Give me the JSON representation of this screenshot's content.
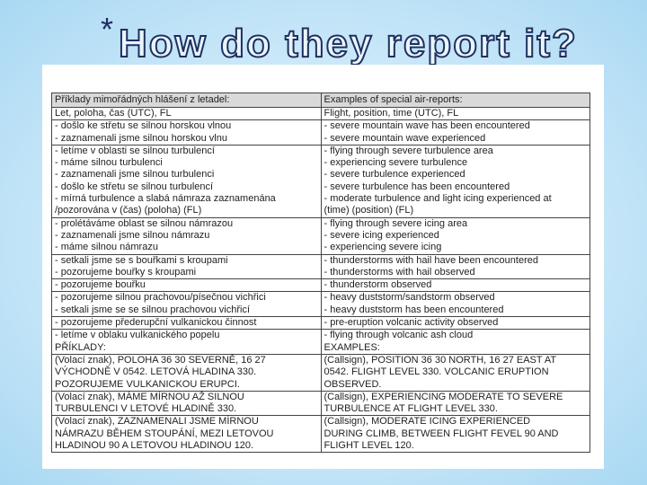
{
  "slide": {
    "bullet": "*",
    "title": "How do they report it?"
  },
  "table": {
    "header": [
      "Příklady mimořádných hlášení z letadel:",
      "Examples of special air-reports:"
    ],
    "rows": [
      [
        [
          "Let, poloha, čas (UTC), FL"
        ],
        [
          "Flight, position, time (UTC), FL"
        ]
      ],
      [
        [
          "- došlo ke střetu se silnou horskou vlnou",
          "- zaznamenali jsme silnou horskou vlnu"
        ],
        [
          "- severe mountain wave has been encountered",
          "- severe mountain wave experienced"
        ]
      ],
      [
        [
          "- letíme v oblasti se silnou turbulencí",
          "- máme silnou turbulenci",
          "- zaznamenali jsme silnou turbulenci",
          "- došlo ke střetu se silnou turbulencí",
          "- mírná turbulence a slabá námraza zaznamenána",
          "/pozorována v (čas) (poloha) (FL)"
        ],
        [
          "- flying through severe turbulence area",
          "- experiencing severe turbulence",
          "- severe turbulence experienced",
          "- severe turbulence has been encountered",
          "- moderate turbulence and light icing experienced at",
          "(time) (position) (FL)"
        ]
      ],
      [
        [
          "- prolétáváme oblast se silnou námrazou",
          "- zaznamenali jsme silnou námrazu",
          "- máme silnou námrazu"
        ],
        [
          "- flying through severe icing area",
          "- severe icing experienced",
          "- experiencing severe icing"
        ]
      ],
      [
        [
          "- setkali jsme se s bouřkami s kroupami",
          "- pozorujeme bouřky s kroupami"
        ],
        [
          "- thunderstorms with hail have been encountered",
          "- thunderstorms with hail observed"
        ]
      ],
      [
        [
          "- pozorujeme bouřku"
        ],
        [
          "- thunderstorm observed"
        ]
      ],
      [
        [
          "- pozorujeme silnou prachovou/písečnou vichřici",
          "- setkali jsme se se silnou prachovou vichřicí"
        ],
        [
          "- heavy duststorm/sandstorm observed",
          "- heavy duststorm has been encountered"
        ]
      ],
      [
        [
          "- pozorujeme přederupční vulkanickou činnost"
        ],
        [
          "- pre-eruption volcanic activity observed"
        ]
      ],
      [
        [
          "- letíme v oblaku vulkanického popelu",
          "PŘÍKLADY:"
        ],
        [
          "- flying through volcanic ash cloud",
          "EXAMPLES:"
        ]
      ],
      [
        [
          "(Volací znak), POLOHA 36 30 SEVERNĚ, 16 27",
          "VÝCHODNĚ V 0542. LETOVÁ HLADINA 330.",
          "POZORUJEME VULKANICKOU ERUPCI."
        ],
        [
          "(Callsign), POSITION 36 30 NORTH, 16 27 EAST AT",
          "0542. FLIGHT LEVEL 330. VOLCANIC ERUPTION",
          "OBSERVED."
        ]
      ],
      [
        [
          "(Volací znak), MÁME MÍRNOU AŽ SILNOU",
          "TURBULENCI V LETOVÉ HLADINĚ 330."
        ],
        [
          "(Callsign), EXPERIENCING MODERATE TO SEVERE",
          "TURBULENCE AT FLIGHT LEVEL 330."
        ]
      ],
      [
        [
          "(Volací znak), ZAZNAMENALI JSME MÍRNOU",
          "NÁMRAZU BĚHEM STOUPÁNÍ, MEZI LETOVOU",
          "HLADINOU 90 A LETOVOU HLADINOU 120."
        ],
        [
          "(Callsign), MODERATE ICING EXPERIENCED",
          "DURING CLIMB, BETWEEN FLIGHT FEVEL 90 AND",
          "FLIGHT LEVEL 120."
        ]
      ]
    ]
  }
}
